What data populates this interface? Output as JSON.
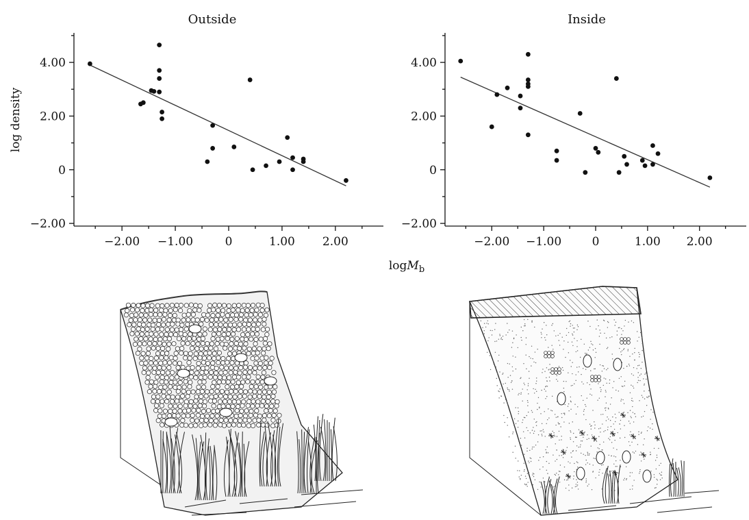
{
  "chart_data": [
    {
      "type": "scatter",
      "title": "Outside",
      "xlabel_main": "log",
      "xlabel_italic": "M",
      "xlabel_sub": "b",
      "ylabel": "log density",
      "xlim": [
        -2.9,
        2.9
      ],
      "ylim": [
        -2.1,
        5.1
      ],
      "xticks": [
        -2.0,
        -1.0,
        0,
        1.0,
        2.0
      ],
      "xtick_labels": [
        "−2.00",
        "−1.00",
        "0",
        "1.00",
        "2.00"
      ],
      "yticks": [
        -2.0,
        0,
        2.0,
        4.0
      ],
      "ytick_labels": [
        "−2.00",
        "0",
        "2.00",
        "4.00"
      ],
      "points": [
        [
          -2.6,
          3.95
        ],
        [
          -1.3,
          4.65
        ],
        [
          -1.3,
          3.7
        ],
        [
          -1.3,
          3.4
        ],
        [
          -1.45,
          2.95
        ],
        [
          -1.4,
          2.92
        ],
        [
          -1.3,
          2.9
        ],
        [
          -1.6,
          2.5
        ],
        [
          -1.65,
          2.45
        ],
        [
          -1.25,
          2.15
        ],
        [
          -1.25,
          1.9
        ],
        [
          -0.3,
          1.65
        ],
        [
          -0.3,
          0.8
        ],
        [
          -0.4,
          0.3
        ],
        [
          0.4,
          3.35
        ],
        [
          0.1,
          0.85
        ],
        [
          0.45,
          0.0
        ],
        [
          0.7,
          0.15
        ],
        [
          0.95,
          0.3
        ],
        [
          1.1,
          1.2
        ],
        [
          1.2,
          0.0
        ],
        [
          1.2,
          0.45
        ],
        [
          1.4,
          0.3
        ],
        [
          1.4,
          0.4
        ],
        [
          2.2,
          -0.4
        ]
      ],
      "fit_line": [
        [
          -2.6,
          3.9
        ],
        [
          2.2,
          -0.6
        ]
      ]
    },
    {
      "type": "scatter",
      "title": "Inside",
      "xlim": [
        -2.9,
        2.9
      ],
      "ylim": [
        -2.1,
        5.1
      ],
      "xticks": [
        -2.0,
        -1.0,
        0,
        1.0,
        2.0
      ],
      "xtick_labels": [
        "−2.00",
        "−1.00",
        "0",
        "1.00",
        "2.00"
      ],
      "yticks": [
        -2.0,
        0,
        2.0,
        4.0
      ],
      "ytick_labels": [
        "−2.00",
        "0",
        "2.00",
        "4.00"
      ],
      "points": [
        [
          -2.6,
          4.05
        ],
        [
          -1.3,
          4.3
        ],
        [
          -1.3,
          3.35
        ],
        [
          -1.3,
          3.2
        ],
        [
          -1.3,
          3.1
        ],
        [
          -1.7,
          3.05
        ],
        [
          -1.9,
          2.8
        ],
        [
          -1.45,
          2.75
        ],
        [
          -1.45,
          2.3
        ],
        [
          -2.0,
          1.6
        ],
        [
          -1.3,
          1.3
        ],
        [
          -0.3,
          2.1
        ],
        [
          -0.75,
          0.7
        ],
        [
          -0.75,
          0.35
        ],
        [
          -0.2,
          -0.1
        ],
        [
          0.0,
          0.8
        ],
        [
          0.05,
          0.65
        ],
        [
          0.4,
          3.4
        ],
        [
          0.45,
          -0.1
        ],
        [
          0.55,
          0.5
        ],
        [
          0.6,
          0.2
        ],
        [
          0.9,
          0.35
        ],
        [
          0.95,
          0.15
        ],
        [
          1.1,
          0.9
        ],
        [
          1.1,
          0.2
        ],
        [
          1.2,
          0.6
        ],
        [
          2.2,
          -0.3
        ]
      ],
      "fit_line": [
        [
          -2.6,
          3.45
        ],
        [
          2.2,
          -0.65
        ]
      ]
    }
  ]
}
